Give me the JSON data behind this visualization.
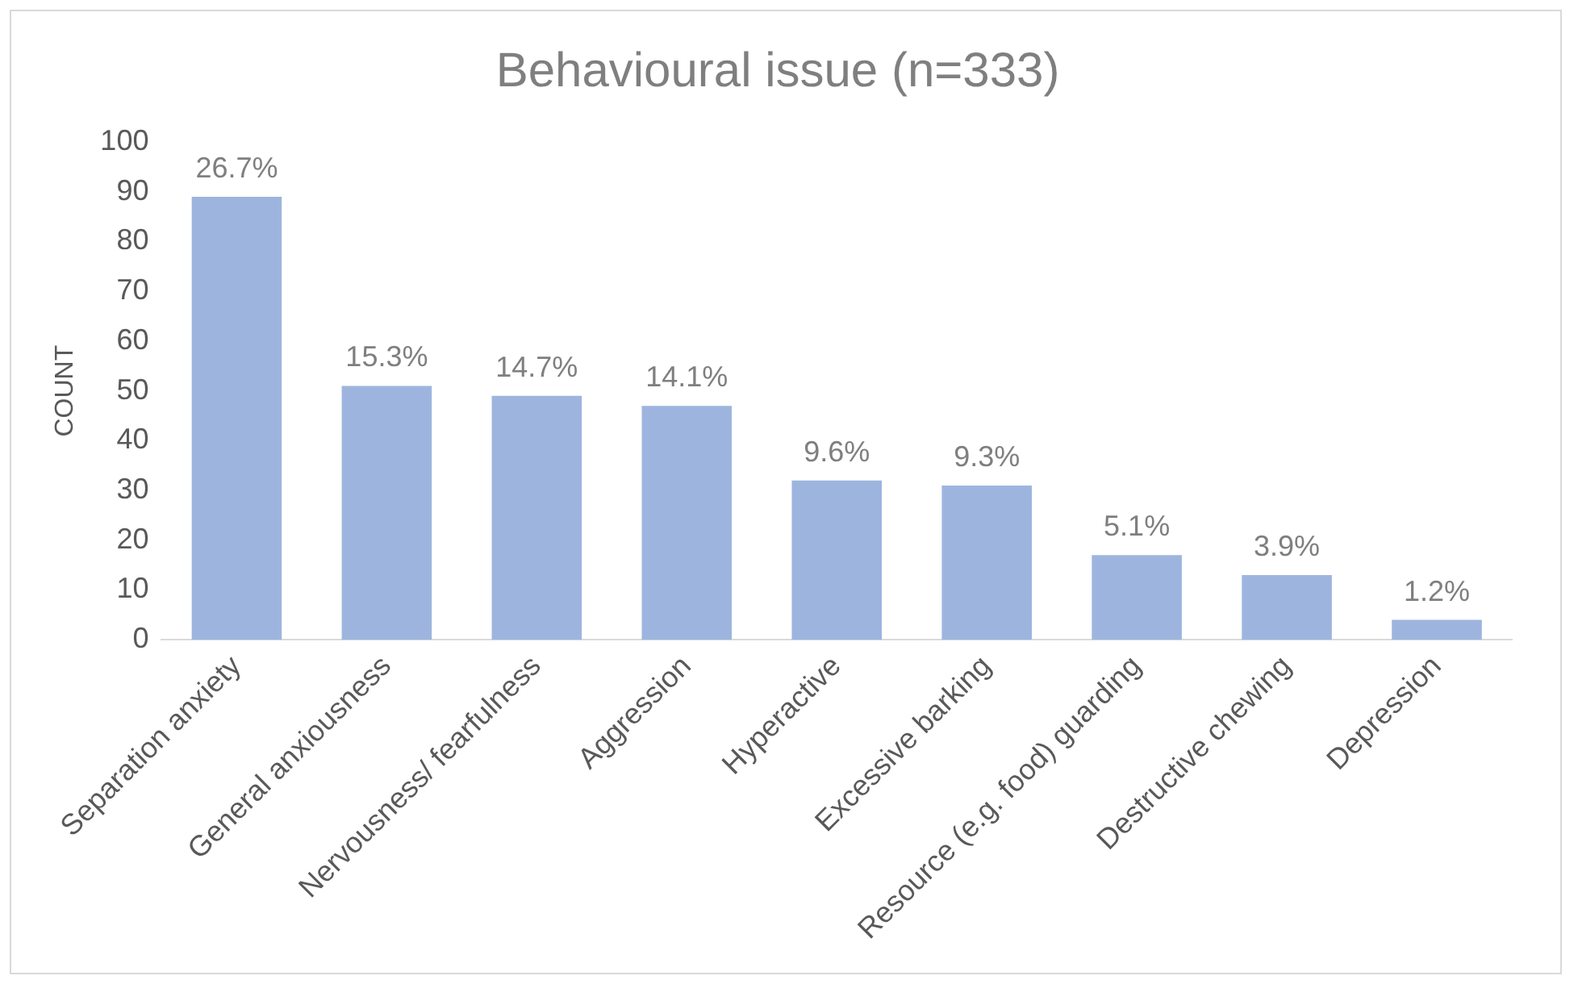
{
  "chart_data": {
    "type": "bar",
    "title": "Behavioural issue (n=333)",
    "ylabel": "COUNT",
    "categories": [
      "Separation anxiety",
      "General anxiousness",
      "Nervousness/ fearfulness",
      "Aggression",
      "Hyperactive",
      "Excessive barking",
      "Resource (e.g. food) guarding",
      "Destructive chewing",
      "Depression"
    ],
    "values": [
      89,
      51,
      49,
      47,
      32,
      31,
      17,
      13,
      4
    ],
    "annotations": [
      {
        "text": "26.7%",
        "x": "Separation anxiety",
        "y": 89
      },
      {
        "text": "15.3%",
        "x": "General anxiousness",
        "y": 51
      },
      {
        "text": "14.7%",
        "x": "Nervousness/ fearfulness",
        "y": 49
      },
      {
        "text": "14.1%",
        "x": "Aggression",
        "y": 47
      },
      {
        "text": "9.6%",
        "x": "Hyperactive",
        "y": 32
      },
      {
        "text": "9.3%",
        "x": "Excessive barking",
        "y": 31
      },
      {
        "text": "5.1%",
        "x": "Resource (e.g. food) guarding",
        "y": 17
      },
      {
        "text": "3.9%",
        "x": "Destructive chewing",
        "y": 13
      },
      {
        "text": "1.2%",
        "x": "Depression",
        "y": 4
      }
    ],
    "color": "#9db5de",
    "ylim": [
      0,
      100
    ],
    "yticks": [
      0,
      10,
      20,
      30,
      40,
      50,
      60,
      70,
      80,
      90,
      100
    ],
    "grid": false,
    "legend": false
  }
}
